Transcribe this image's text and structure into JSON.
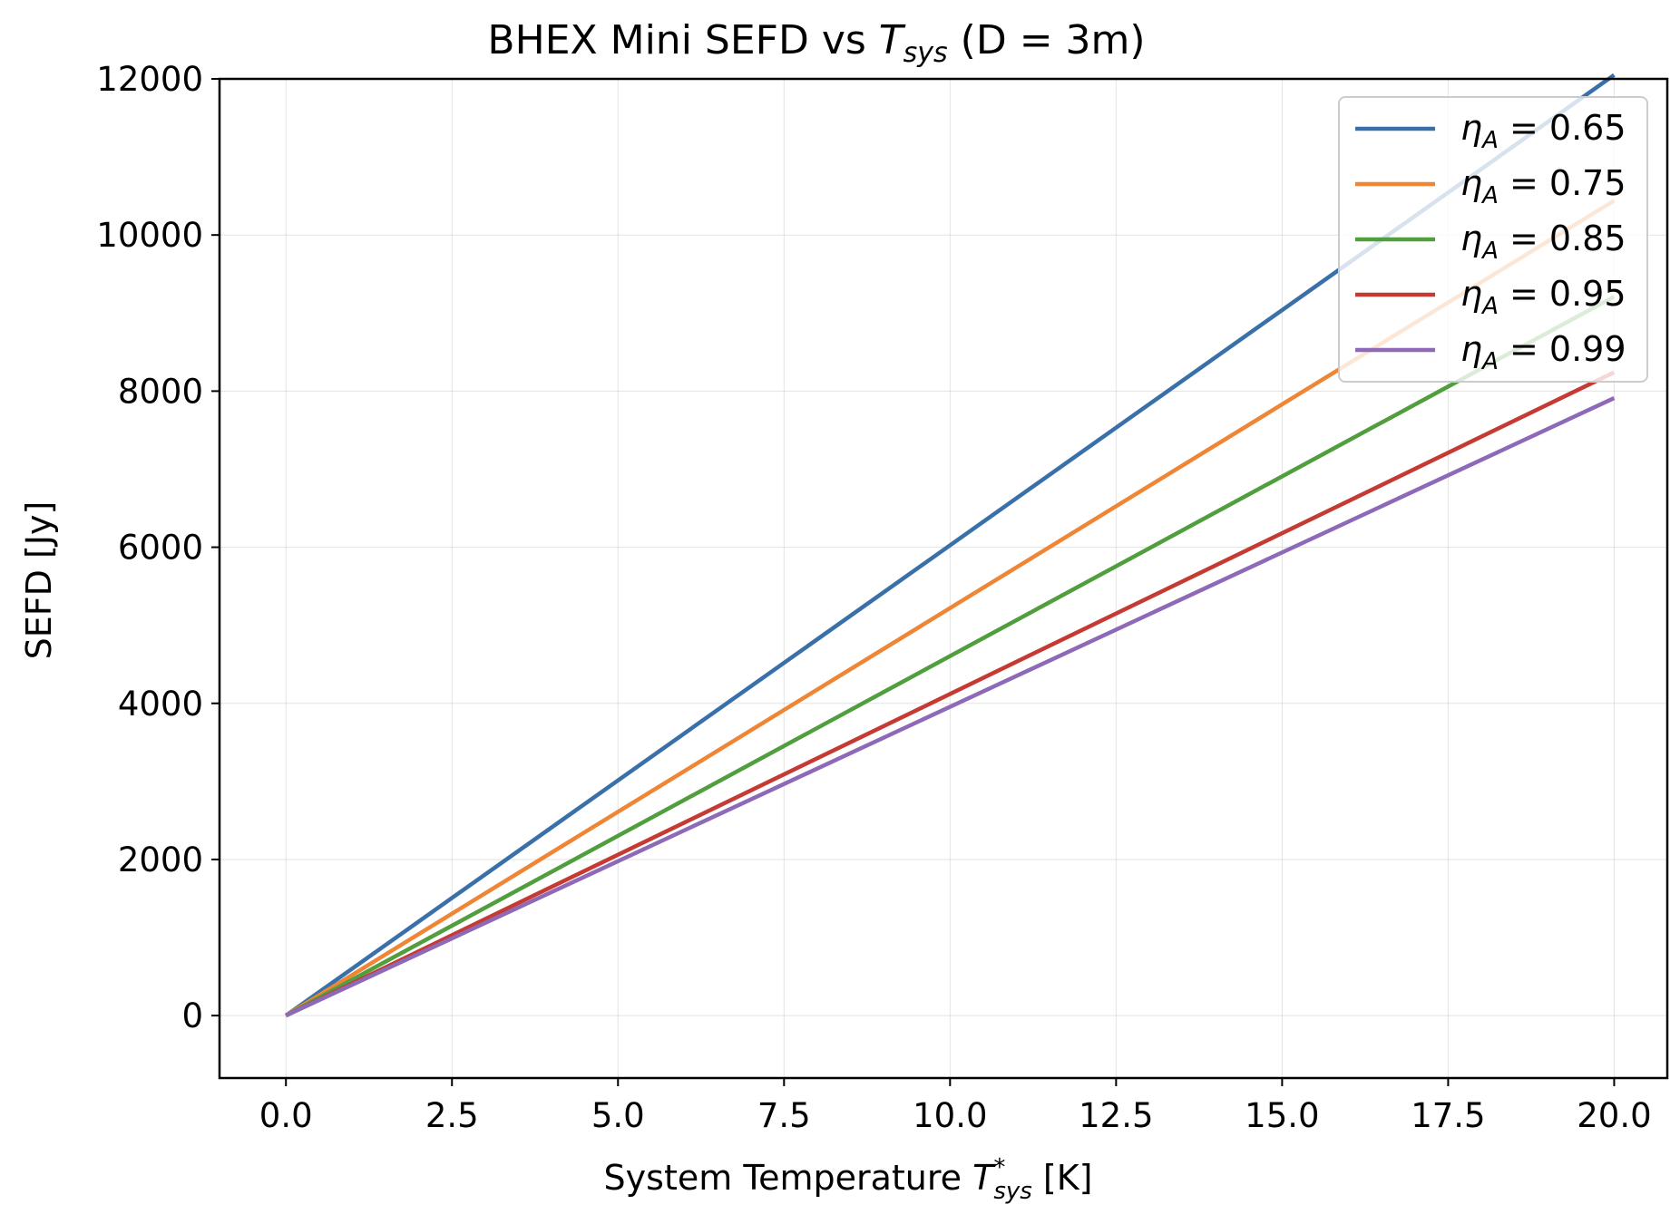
{
  "chart_data": {
    "type": "line",
    "title": {
      "prefix": "BHEX Mini SEFD vs ",
      "t_base": "T",
      "t_sub": "sys",
      "d_part": " (D = 3m)"
    },
    "xlabel": {
      "prefix": "System Temperature ",
      "t_base": "T",
      "t_sup": "*",
      "t_sub": "sys",
      "suffix": " [K]"
    },
    "ylabel": "SEFD [Jy]",
    "xlim": [
      -1.0,
      20.8
    ],
    "ylim": [
      -800,
      12000
    ],
    "xticks": [
      0,
      2.5,
      5,
      7.5,
      10,
      12.5,
      15,
      17.5,
      20
    ],
    "xtick_labels": [
      "0.0",
      "2.5",
      "5.0",
      "7.5",
      "10.0",
      "12.5",
      "15.0",
      "17.5",
      "20.0"
    ],
    "yticks": [
      0,
      2000,
      4000,
      6000,
      8000,
      10000,
      12000
    ],
    "ytick_labels": [
      "0",
      "2000",
      "4000",
      "6000",
      "8000",
      "10000",
      "12000"
    ],
    "grid": true,
    "legend_position": "top-right",
    "series": [
      {
        "name": "η_A = 0.65",
        "eta": "0.65",
        "color": "#3a70aa",
        "x": [
          0,
          20
        ],
        "y": [
          0,
          12050
        ]
      },
      {
        "name": "η_A = 0.75",
        "eta": "0.75",
        "color": "#ef8636",
        "x": [
          0,
          20
        ],
        "y": [
          0,
          10440
        ]
      },
      {
        "name": "η_A = 0.85",
        "eta": "0.85",
        "color": "#519e3e",
        "x": [
          0,
          20
        ],
        "y": [
          0,
          9210
        ]
      },
      {
        "name": "η_A = 0.95",
        "eta": "0.95",
        "color": "#c53a32",
        "x": [
          0,
          20
        ],
        "y": [
          0,
          8240
        ]
      },
      {
        "name": "η_A = 0.99",
        "eta": "0.99",
        "color": "#8d69b8",
        "x": [
          0,
          20
        ],
        "y": [
          0,
          7910
        ]
      }
    ]
  }
}
